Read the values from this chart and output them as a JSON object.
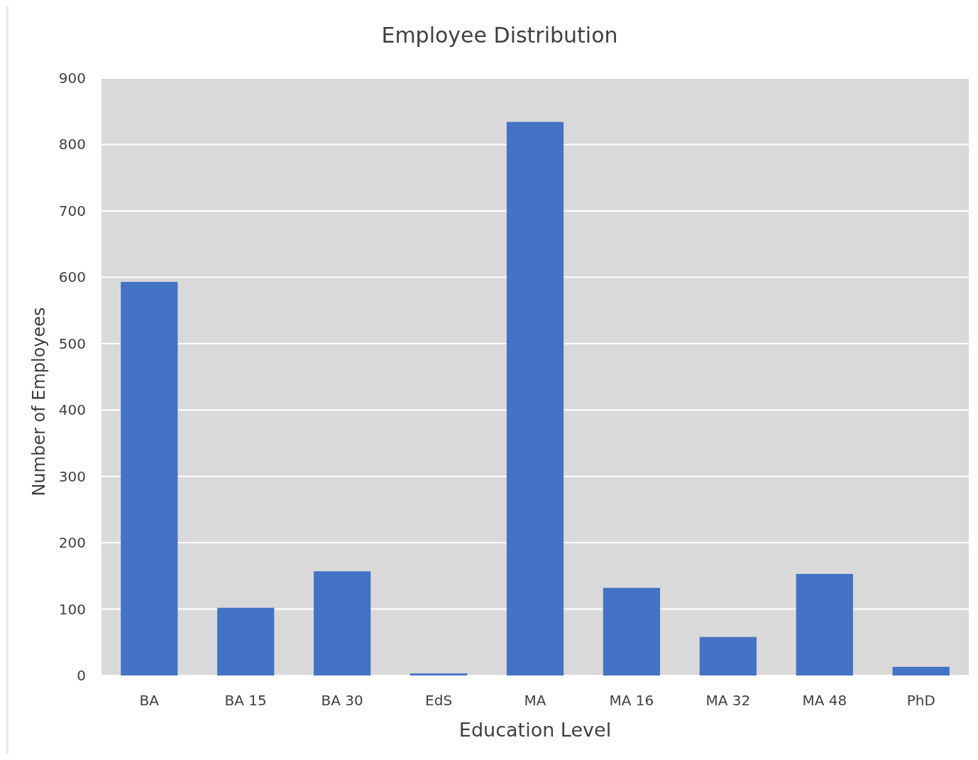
{
  "chart_data": {
    "type": "bar",
    "title": "Employee Distribution",
    "xlabel": "Education Level",
    "ylabel": "Number of Employees",
    "categories": [
      "BA",
      "BA 15",
      "BA 30",
      "EdS",
      "MA",
      "MA 16",
      "MA 32",
      "MA 48",
      "PhD"
    ],
    "values": [
      593,
      102,
      157,
      3,
      834,
      132,
      58,
      153,
      13
    ],
    "color": "#4472c4",
    "ylim": [
      0,
      900
    ],
    "yticks": [
      0,
      100,
      200,
      300,
      400,
      500,
      600,
      700,
      800,
      900
    ],
    "grid": "y"
  }
}
